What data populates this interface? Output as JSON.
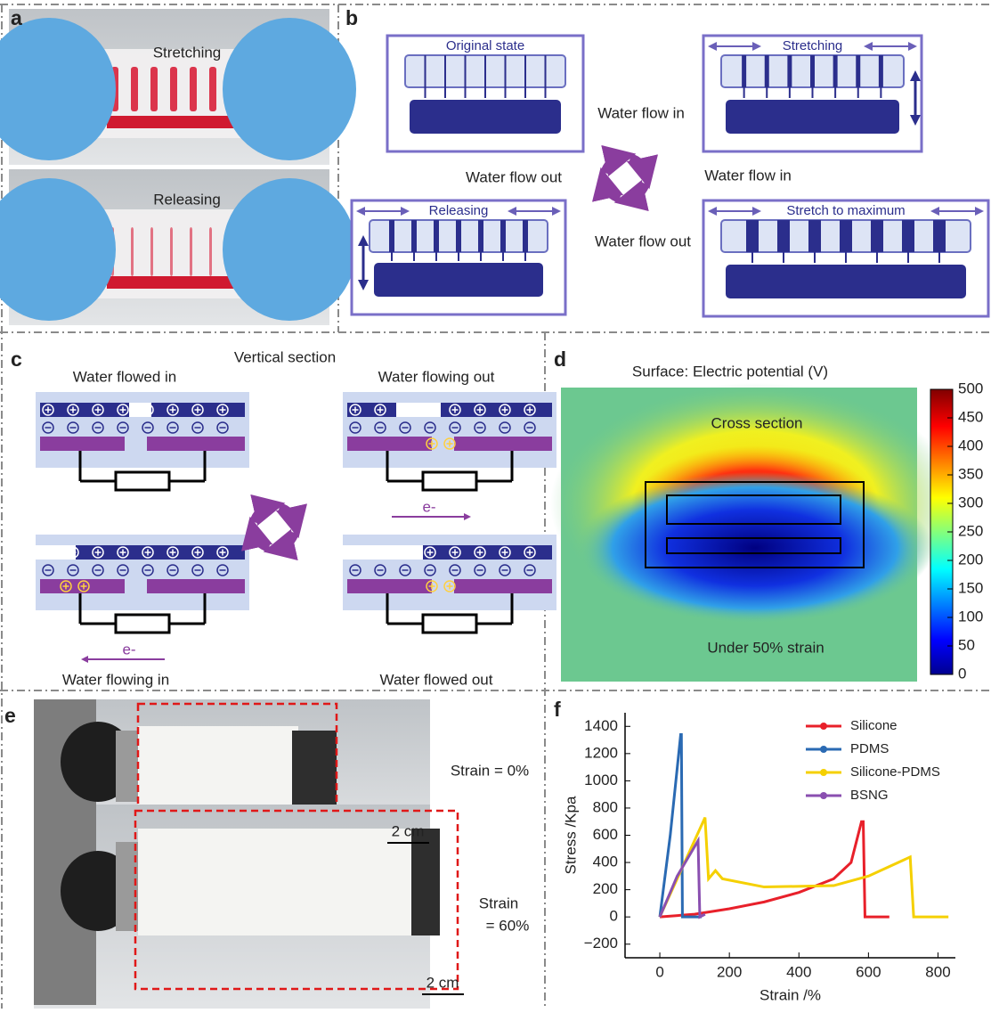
{
  "panels": {
    "a": {
      "label": "a",
      "texts": [
        "Stretching",
        "Releasing"
      ]
    },
    "b": {
      "label": "b",
      "states": [
        "Original state",
        "Stretching",
        "Releasing",
        "Stretch to maximum"
      ],
      "flows": [
        "Water flow in",
        "Water flow out",
        "Water flow in",
        "Water flow out"
      ]
    },
    "c": {
      "label": "c",
      "title": "Vertical section",
      "states": [
        "Water flowed in",
        "Water flowing out",
        "Water flowing in",
        "Water flowed out"
      ],
      "electron": "e-"
    },
    "d": {
      "label": "d",
      "title": "Surface:  Electric potential (V)",
      "top_text": "Cross section",
      "bottom_text": "Under 50% strain",
      "colorbar": {
        "lim": [
          0,
          500
        ],
        "ticks": [
          0,
          50,
          100,
          150,
          200,
          250,
          300,
          350,
          400,
          450,
          500
        ]
      }
    },
    "e": {
      "label": "e",
      "strain_top": "Strain = 0%",
      "strain_bottom": [
        "Strain",
        "= 60%"
      ],
      "scale": "2 cm"
    }
  },
  "chart_data": {
    "type": "line",
    "label": "f",
    "xlabel": "Strain /%",
    "ylabel": "Stress /Kpa",
    "legend": "upper right",
    "xlim": [
      -100,
      850
    ],
    "xticks": [
      0,
      200,
      400,
      600,
      800
    ],
    "ylim": [
      -300,
      1500
    ],
    "yticks": [
      {
        "value": -200,
        "label": "−200"
      },
      0,
      200,
      400,
      600,
      800,
      1000,
      1200,
      1400
    ],
    "series": [
      {
        "name": "Silicone",
        "color": "#e8202a",
        "x": [
          0,
          100,
          200,
          300,
          400,
          500,
          550,
          580,
          585,
          590,
          660
        ],
        "values": [
          0,
          20,
          60,
          110,
          180,
          280,
          400,
          700,
          700,
          0,
          0
        ]
      },
      {
        "name": "PDMS",
        "color": "#2a6ab3",
        "x": [
          0,
          30,
          60,
          62,
          65,
          80,
          120
        ],
        "values": [
          0,
          600,
          1340,
          1340,
          0,
          0,
          0
        ]
      },
      {
        "name": "Silicone-PDMS",
        "color": "#f5d000",
        "x": [
          0,
          130,
          140,
          160,
          180,
          300,
          500,
          600,
          720,
          730,
          830
        ],
        "values": [
          0,
          730,
          280,
          340,
          280,
          220,
          230,
          300,
          440,
          0,
          0
        ]
      },
      {
        "name": "BSNG",
        "color": "#8a4fb0",
        "x": [
          0,
          50,
          110,
          115,
          130
        ],
        "values": [
          0,
          300,
          560,
          0,
          20
        ]
      }
    ]
  }
}
